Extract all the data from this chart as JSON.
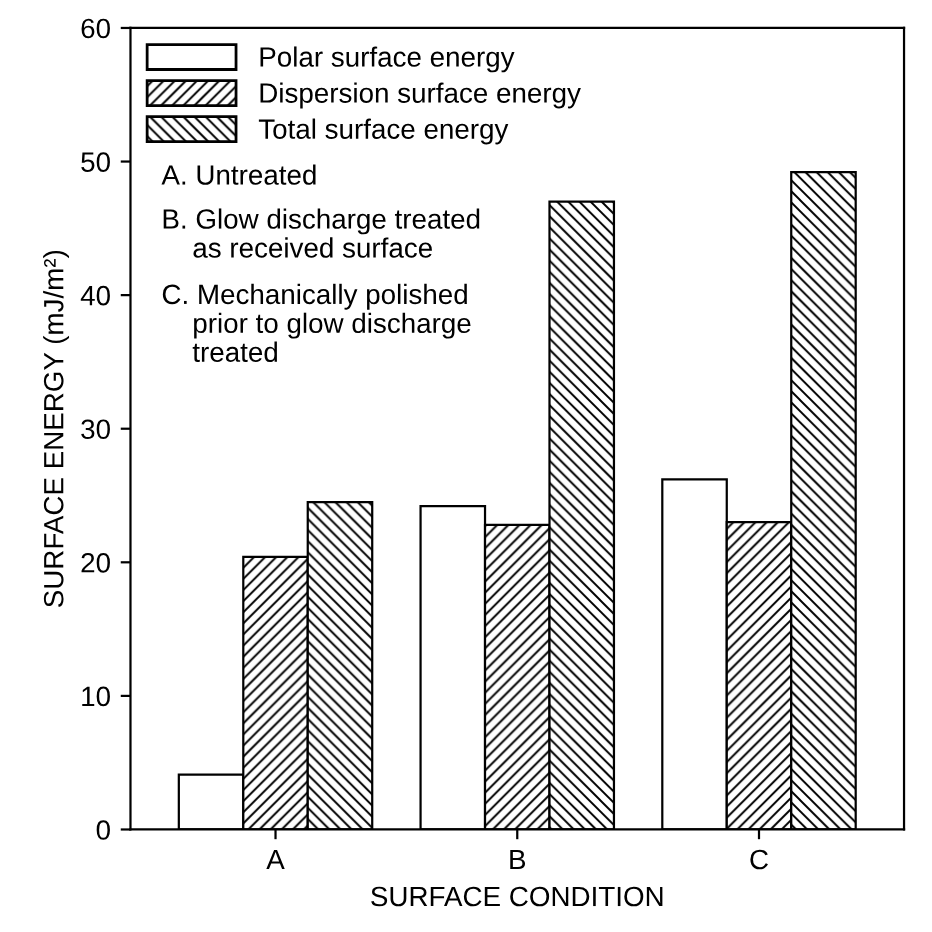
{
  "chart_data": {
    "type": "bar",
    "xlabel": "SURFACE CONDITION",
    "ylabel": "SURFACE ENERGY (mJ/m²)",
    "categories": [
      "A",
      "B",
      "C"
    ],
    "series": [
      {
        "name": "Polar surface energy",
        "color": "#ffffff",
        "values": [
          4.1,
          24.2,
          26.2
        ]
      },
      {
        "name": "Dispersion surface energy",
        "color": "#000000",
        "values": [
          20.4,
          22.8,
          23.0
        ]
      },
      {
        "name": "Total surface energy",
        "color": "#000000",
        "values": [
          24.5,
          47.0,
          49.2
        ]
      }
    ],
    "ylim": [
      0,
      60
    ],
    "yticks": [
      0,
      10,
      20,
      30,
      40,
      50,
      60
    ],
    "grid": false,
    "legend": "top left",
    "annotations": [
      "A. Untreated",
      "B. Glow discharge treated\n    as received surface",
      "C. Mechanically polished\n    prior to glow discharge\n    treated"
    ]
  }
}
